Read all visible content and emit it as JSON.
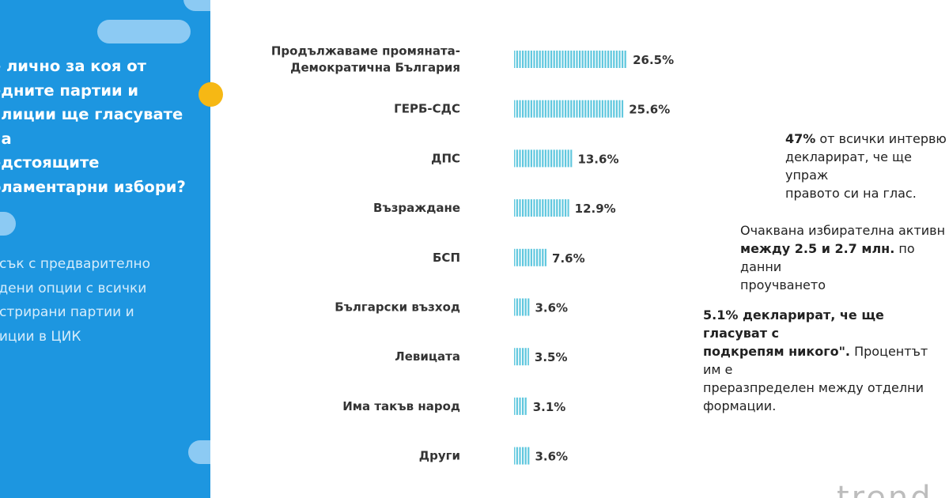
{
  "colors": {
    "panel_bg": "#1d96e0",
    "panel_pill": "#8ccaf3",
    "accent_dot": "#f6b814",
    "bar_fill": "#5fc7de",
    "bar_stripe": "#ffffff"
  },
  "left_panel": {
    "question": "е лично за коя от\nедните партии и\nалиции ще гласувате на\nедстоящите\nоламентарни избори?",
    "note": "исък с предварително\nадени опции с всички\nистрирани партии и\nлиции в ЦИК"
  },
  "chart_data": {
    "type": "bar",
    "orientation": "horizontal",
    "bar_style": "vertical-striped",
    "value_suffix": "%",
    "categories": [
      [
        "Продължаваме промяната-",
        "Демократична България"
      ],
      [
        "ГЕРБ-СДС"
      ],
      [
        "ДПС"
      ],
      [
        "Възраждане"
      ],
      [
        "БСП"
      ],
      [
        "Български възход"
      ],
      [
        "Левицата"
      ],
      [
        "Има такъв народ"
      ],
      [
        "Други"
      ]
    ],
    "values": [
      26.5,
      25.6,
      13.6,
      12.9,
      7.6,
      3.6,
      3.5,
      3.1,
      3.6
    ],
    "value_labels": [
      "26.5%",
      "25.6%",
      "13.6%",
      "12.9%",
      "7.6%",
      "3.6%",
      "3.5%",
      "3.1%",
      "3.6%"
    ]
  },
  "facts": {
    "fact1": {
      "bold": "47%",
      "text": " от всички интервю\nдекларират, че ще упраж\nправото си на глас."
    },
    "fact2": {
      "pre": "Очаквана избирателна активн\n",
      "bold": "между 2.5 и 2.7 млн.",
      "post": " по данни\nпроучването"
    },
    "fact3": {
      "bold": "5.1% декларират, че ще гласуват с\nподкрепям никого\".",
      "text": " Процентът им е\nпреразпределен между отделни\nформации."
    }
  },
  "logo_fragment": "trend"
}
